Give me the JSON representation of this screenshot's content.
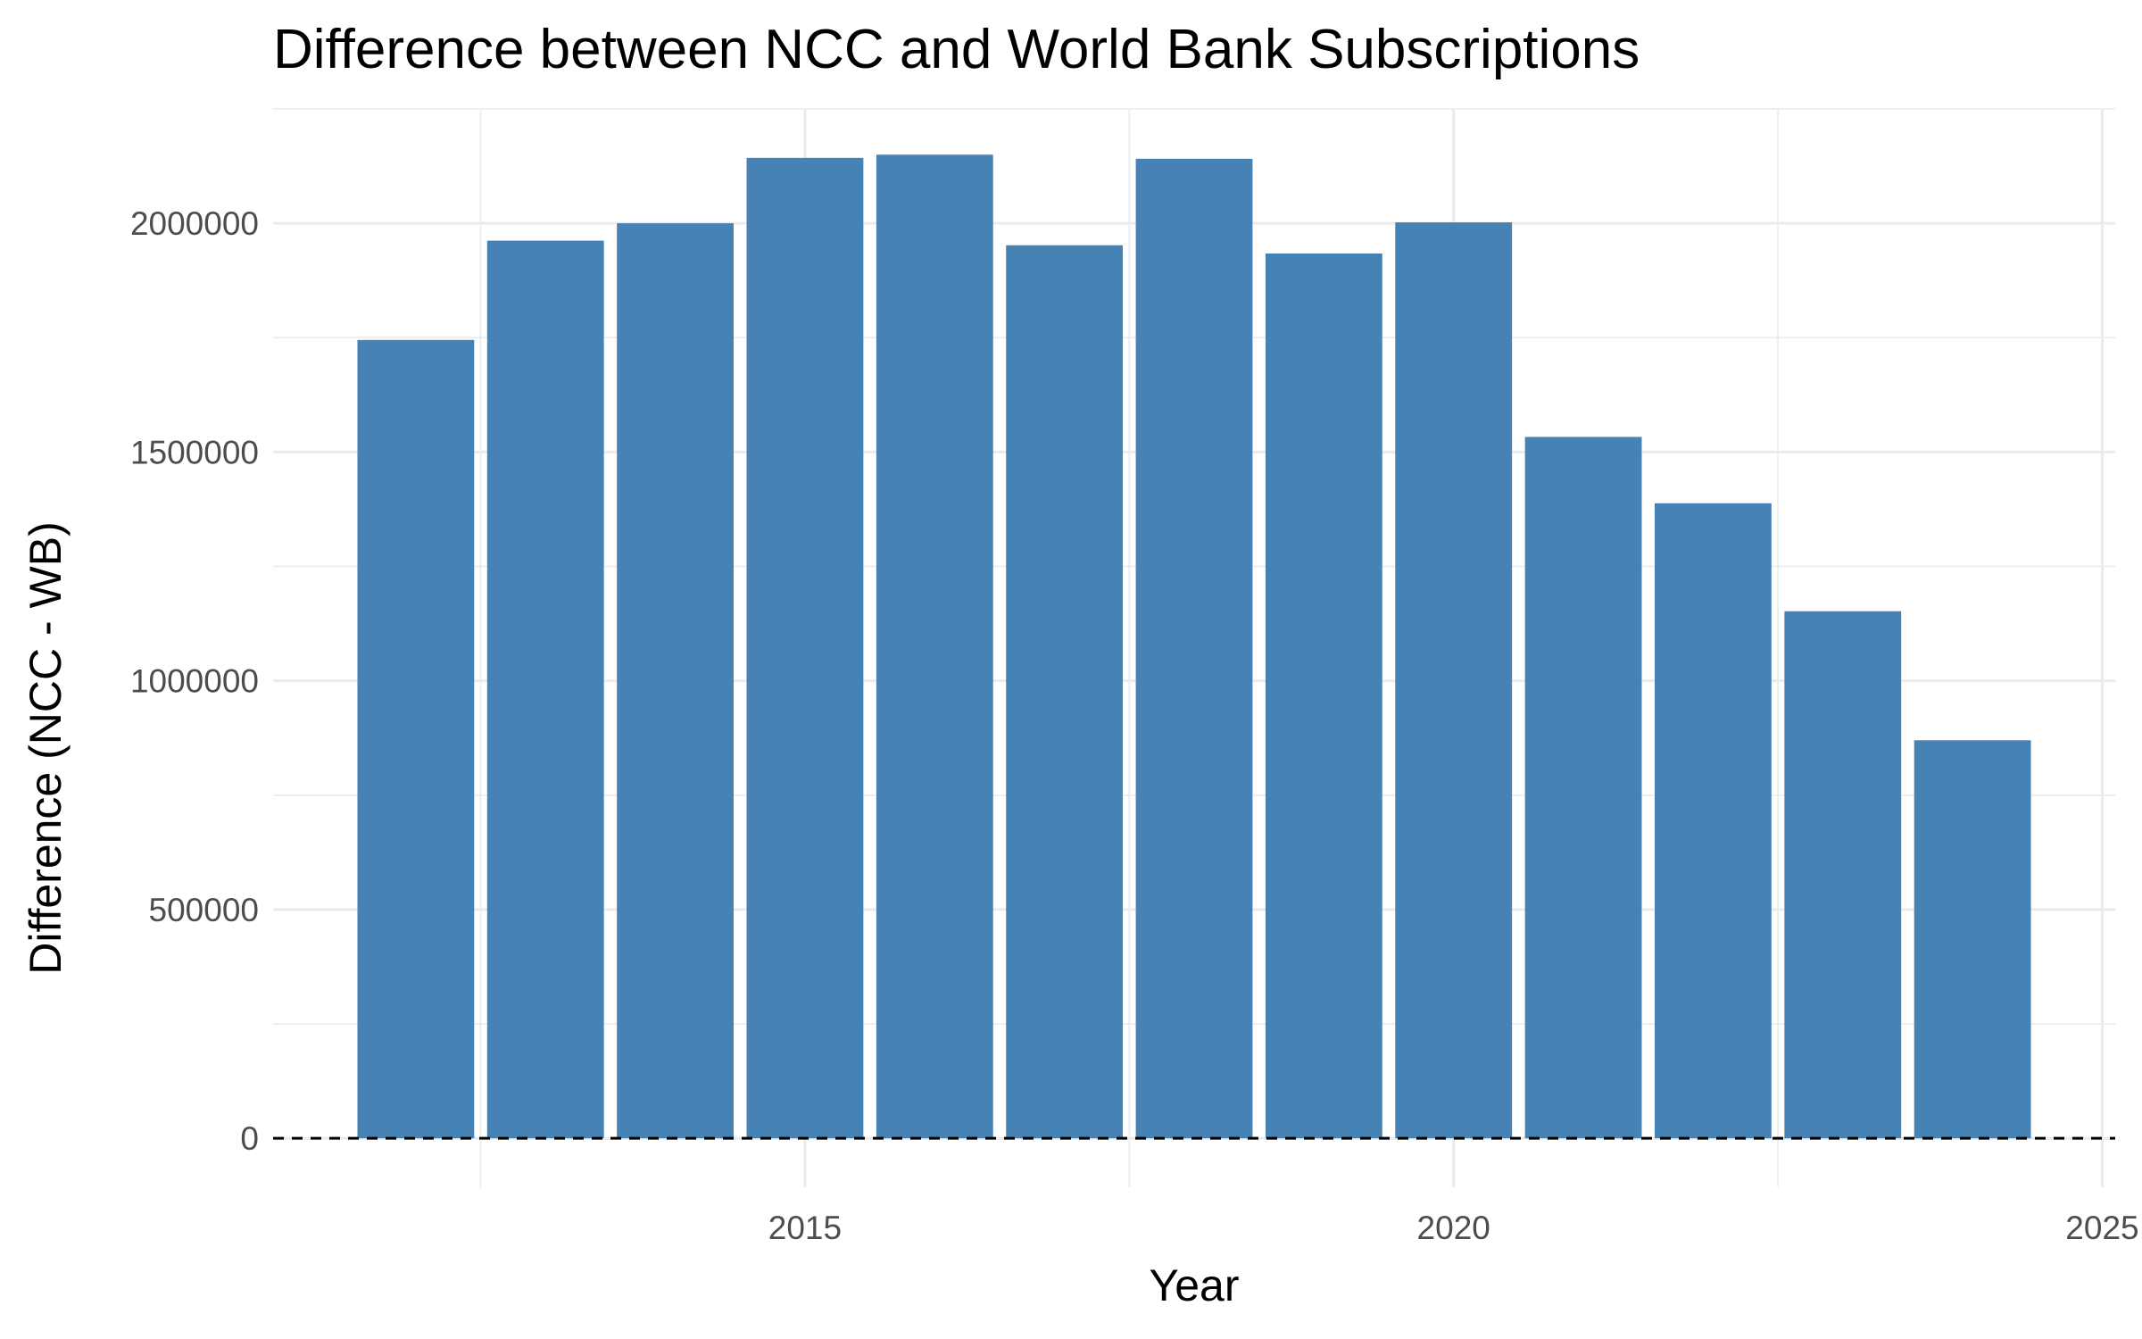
{
  "chart_data": {
    "type": "bar",
    "title": "Difference between NCC and World Bank Subscriptions",
    "xlabel": "Year",
    "ylabel": "Difference (NCC - WB)",
    "x": [
      2012,
      2013,
      2014,
      2015,
      2016,
      2017,
      2018,
      2019,
      2020,
      2021,
      2022,
      2023,
      2024
    ],
    "values": [
      1745000,
      1962000,
      2000000,
      2143000,
      2150000,
      1952000,
      2141000,
      1934000,
      2002000,
      1533000,
      1388000,
      1152000,
      870000
    ],
    "xlim": [
      2010.9,
      2025.1
    ],
    "ylim": [
      -107000,
      2250000
    ],
    "x_ticks": [
      2015,
      2020,
      2025
    ],
    "y_ticks": [
      0,
      500000,
      1000000,
      1500000,
      2000000
    ],
    "x_tick_labels": [
      "2015",
      "2020",
      "2025"
    ],
    "y_tick_labels": [
      "0",
      "500000",
      "1000000",
      "1500000",
      "2000000"
    ],
    "bar_color": "#4682b4",
    "reference_line": {
      "y": 0,
      "style": "dashed",
      "color": "#000000"
    },
    "grid": true,
    "legend": "none"
  }
}
